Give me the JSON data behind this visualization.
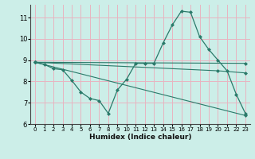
{
  "background_color": "#cceee8",
  "grid_color": "#e8b4c0",
  "line_color": "#2a7a6a",
  "xlim": [
    -0.5,
    23.5
  ],
  "ylim": [
    6,
    11.6
  ],
  "yticks": [
    6,
    7,
    8,
    9,
    10,
    11
  ],
  "xticks": [
    0,
    1,
    2,
    3,
    4,
    5,
    6,
    7,
    8,
    9,
    10,
    11,
    12,
    13,
    14,
    15,
    16,
    17,
    18,
    19,
    20,
    21,
    22,
    23
  ],
  "xlabel": "Humidex (Indice chaleur)",
  "series": [
    {
      "x": [
        0,
        1,
        2,
        3,
        4,
        5,
        6,
        7,
        8,
        9,
        10,
        11,
        12,
        13,
        14,
        15,
        16,
        17,
        18,
        19,
        20,
        21,
        22,
        23
      ],
      "y": [
        8.9,
        8.8,
        8.6,
        8.55,
        8.05,
        7.5,
        7.2,
        7.1,
        6.5,
        7.6,
        8.1,
        8.85,
        8.85,
        8.85,
        9.8,
        10.65,
        11.3,
        11.25,
        10.1,
        9.5,
        9.0,
        8.5,
        7.4,
        6.5
      ]
    },
    {
      "x": [
        0,
        23
      ],
      "y": [
        8.9,
        8.85
      ]
    },
    {
      "x": [
        0,
        20,
        23
      ],
      "y": [
        8.9,
        8.5,
        8.4
      ]
    },
    {
      "x": [
        0,
        23
      ],
      "y": [
        8.9,
        6.4
      ]
    }
  ]
}
